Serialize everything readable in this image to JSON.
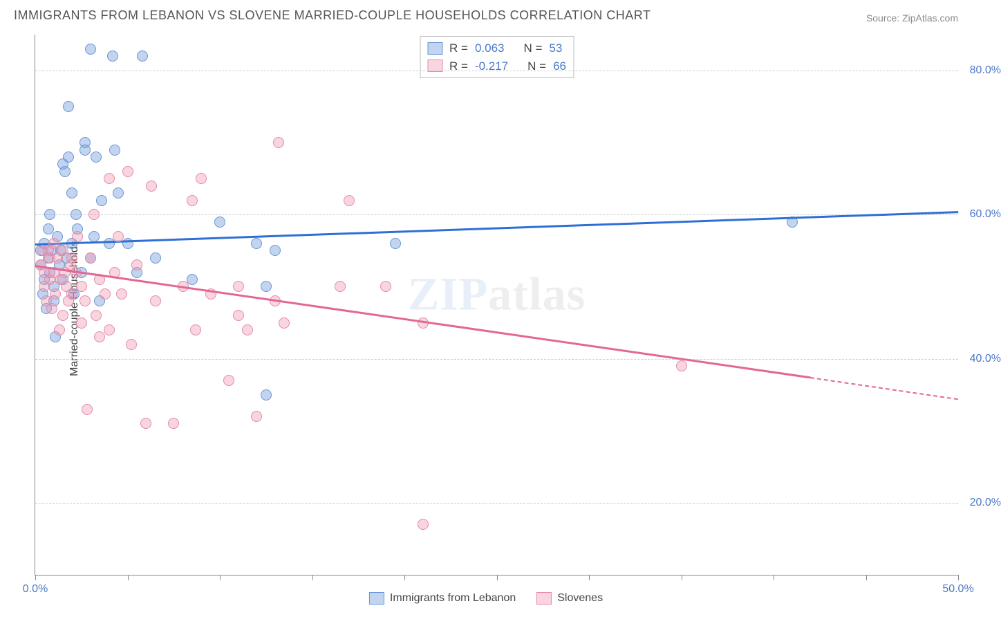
{
  "title": "IMMIGRANTS FROM LEBANON VS SLOVENE MARRIED-COUPLE HOUSEHOLDS CORRELATION CHART",
  "source_prefix": "Source: ",
  "source_name": "ZipAtlas.com",
  "ylabel": "Married-couple Households",
  "watermark": {
    "z": "ZIP",
    "rest": "atlas"
  },
  "chart": {
    "type": "scatter",
    "xlim": [
      0,
      50
    ],
    "ylim": [
      10,
      85
    ],
    "yticks": [
      {
        "v": 20,
        "label": "20.0%"
      },
      {
        "v": 40,
        "label": "40.0%"
      },
      {
        "v": 60,
        "label": "60.0%"
      },
      {
        "v": 80,
        "label": "80.0%"
      }
    ],
    "xticks": [
      {
        "v": 0,
        "label": "0.0%"
      },
      {
        "v": 5
      },
      {
        "v": 10
      },
      {
        "v": 15
      },
      {
        "v": 20
      },
      {
        "v": 25
      },
      {
        "v": 30
      },
      {
        "v": 35
      },
      {
        "v": 40
      },
      {
        "v": 45
      },
      {
        "v": 50,
        "label": "50.0%"
      }
    ],
    "background_color": "#ffffff",
    "grid_color": "#cccccc",
    "axis_color": "#888888",
    "marker_radius": 8,
    "series": [
      {
        "key": "lebanon",
        "label": "Immigrants from Lebanon",
        "fill": "rgba(120,160,220,0.45)",
        "stroke": "#6a96d6",
        "trend_color": "#2e6fd6",
        "r_label": "R =",
        "r_value": "0.063",
        "n_label": "N =",
        "n_value": "53",
        "trend": {
          "x1": 0,
          "y1": 56.0,
          "x2": 50,
          "y2": 60.5
        },
        "points": [
          [
            0.3,
            55
          ],
          [
            0.3,
            53
          ],
          [
            0.4,
            49
          ],
          [
            0.5,
            56
          ],
          [
            0.5,
            51
          ],
          [
            0.6,
            47
          ],
          [
            0.7,
            58
          ],
          [
            0.7,
            54
          ],
          [
            0.8,
            52
          ],
          [
            0.8,
            60
          ],
          [
            0.9,
            55
          ],
          [
            1.0,
            50
          ],
          [
            1.0,
            48
          ],
          [
            1.1,
            43
          ],
          [
            1.2,
            57
          ],
          [
            1.3,
            53
          ],
          [
            1.4,
            55
          ],
          [
            1.5,
            51
          ],
          [
            1.5,
            67
          ],
          [
            1.6,
            66
          ],
          [
            1.7,
            54
          ],
          [
            1.8,
            68
          ],
          [
            1.8,
            75
          ],
          [
            2.0,
            56
          ],
          [
            2.0,
            63
          ],
          [
            2.1,
            49
          ],
          [
            2.2,
            60
          ],
          [
            2.3,
            58
          ],
          [
            2.5,
            52
          ],
          [
            2.7,
            70
          ],
          [
            2.7,
            69
          ],
          [
            3.0,
            54
          ],
          [
            3.0,
            83
          ],
          [
            3.2,
            57
          ],
          [
            3.3,
            68
          ],
          [
            3.5,
            48
          ],
          [
            3.6,
            62
          ],
          [
            4.0,
            56
          ],
          [
            4.2,
            82
          ],
          [
            4.3,
            69
          ],
          [
            4.5,
            63
          ],
          [
            5.0,
            56
          ],
          [
            5.5,
            52
          ],
          [
            5.8,
            82
          ],
          [
            6.5,
            54
          ],
          [
            8.5,
            51
          ],
          [
            10.0,
            59
          ],
          [
            12.0,
            56
          ],
          [
            12.5,
            50
          ],
          [
            13.0,
            55
          ],
          [
            12.5,
            35
          ],
          [
            19.5,
            56
          ],
          [
            41.0,
            59
          ]
        ]
      },
      {
        "key": "slovenes",
        "label": "Slovenes",
        "fill": "rgba(240,150,175,0.40)",
        "stroke": "#e48aa6",
        "trend_color": "#e36891",
        "r_label": "R =",
        "r_value": "-0.217",
        "n_label": "N =",
        "n_value": "66",
        "trend": {
          "x1": 0,
          "y1": 53.0,
          "x2": 42,
          "y2": 37.5
        },
        "trend_dash": {
          "x1": 42,
          "y1": 37.5,
          "x2": 50,
          "y2": 34.5
        },
        "points": [
          [
            0.3,
            53
          ],
          [
            0.4,
            55
          ],
          [
            0.5,
            52
          ],
          [
            0.5,
            50
          ],
          [
            0.6,
            48
          ],
          [
            0.7,
            55
          ],
          [
            0.8,
            54
          ],
          [
            0.8,
            51
          ],
          [
            0.9,
            47
          ],
          [
            1.0,
            52
          ],
          [
            1.0,
            56
          ],
          [
            1.1,
            49
          ],
          [
            1.2,
            54
          ],
          [
            1.3,
            44
          ],
          [
            1.4,
            51
          ],
          [
            1.5,
            55
          ],
          [
            1.5,
            46
          ],
          [
            1.6,
            52
          ],
          [
            1.7,
            50
          ],
          [
            1.8,
            48
          ],
          [
            1.9,
            53
          ],
          [
            2.0,
            54
          ],
          [
            2.0,
            49
          ],
          [
            2.2,
            52
          ],
          [
            2.3,
            57
          ],
          [
            2.5,
            45
          ],
          [
            2.5,
            50
          ],
          [
            2.7,
            48
          ],
          [
            2.8,
            33
          ],
          [
            3.0,
            54
          ],
          [
            3.2,
            60
          ],
          [
            3.3,
            46
          ],
          [
            3.5,
            43
          ],
          [
            3.5,
            51
          ],
          [
            3.8,
            49
          ],
          [
            4.0,
            65
          ],
          [
            4.0,
            44
          ],
          [
            4.3,
            52
          ],
          [
            4.5,
            57
          ],
          [
            4.7,
            49
          ],
          [
            5.0,
            66
          ],
          [
            5.2,
            42
          ],
          [
            5.5,
            53
          ],
          [
            6.0,
            31
          ],
          [
            6.3,
            64
          ],
          [
            6.5,
            48
          ],
          [
            7.5,
            31
          ],
          [
            8.0,
            50
          ],
          [
            8.5,
            62
          ],
          [
            8.7,
            44
          ],
          [
            9.0,
            65
          ],
          [
            9.5,
            49
          ],
          [
            10.5,
            37
          ],
          [
            11.0,
            46
          ],
          [
            11.0,
            50
          ],
          [
            11.5,
            44
          ],
          [
            12.0,
            32
          ],
          [
            13.0,
            48
          ],
          [
            13.2,
            70
          ],
          [
            13.5,
            45
          ],
          [
            16.5,
            50
          ],
          [
            17.0,
            62
          ],
          [
            19.0,
            50
          ],
          [
            21.0,
            45
          ],
          [
            21.0,
            17
          ],
          [
            35.0,
            39
          ]
        ]
      }
    ]
  }
}
